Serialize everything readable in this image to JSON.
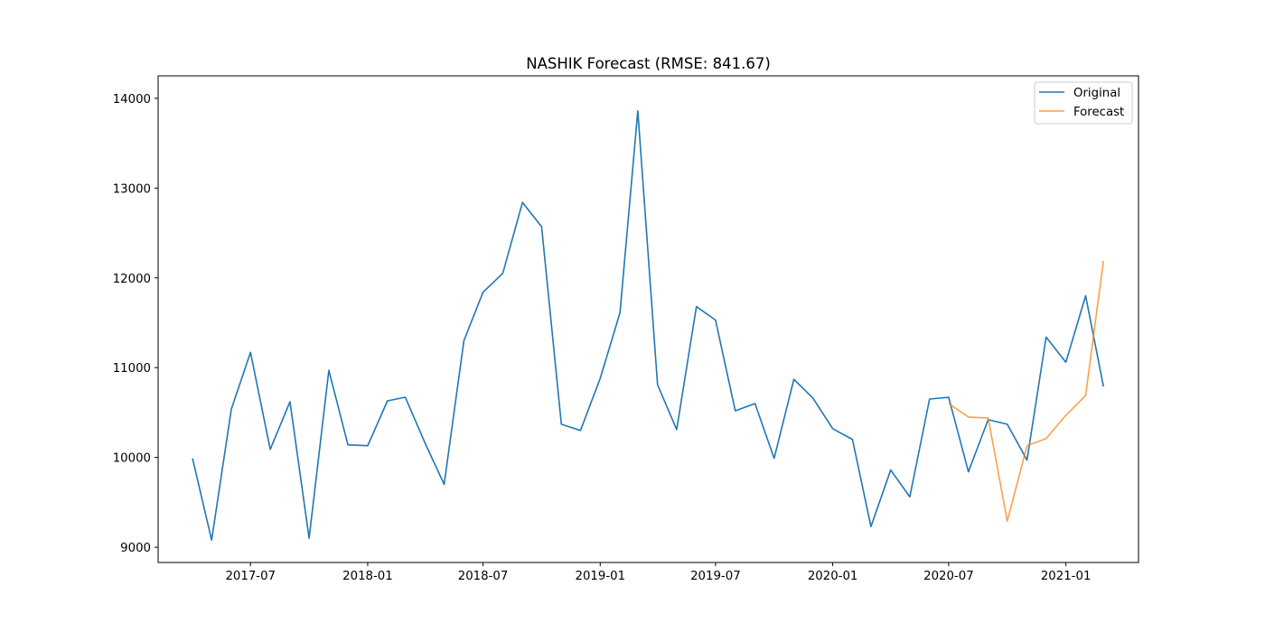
{
  "chart_data": {
    "type": "line",
    "title": "NASHIK Forecast (RMSE: 841.67)",
    "xlabel": "",
    "ylabel": "",
    "x_axis_type": "date",
    "xlim": [
      "2017-02-06",
      "2021-04-25"
    ],
    "ylim": [
      8830,
      14250
    ],
    "x_ticks": [
      {
        "date": "2017-07-01",
        "label": "2017-07"
      },
      {
        "date": "2018-01-01",
        "label": "2018-01"
      },
      {
        "date": "2018-07-01",
        "label": "2018-07"
      },
      {
        "date": "2019-01-01",
        "label": "2019-01"
      },
      {
        "date": "2019-07-01",
        "label": "2019-07"
      },
      {
        "date": "2020-01-01",
        "label": "2020-01"
      },
      {
        "date": "2020-07-01",
        "label": "2020-07"
      },
      {
        "date": "2021-01-01",
        "label": "2021-01"
      }
    ],
    "y_ticks": [
      9000,
      10000,
      11000,
      12000,
      13000,
      14000
    ],
    "grid": false,
    "legend": {
      "position": "upper right",
      "entries": [
        "Original",
        "Forecast"
      ]
    },
    "series": [
      {
        "name": "Original",
        "color": "#1f77b4",
        "x": [
          "2017-04-01",
          "2017-05-01",
          "2017-06-01",
          "2017-07-01",
          "2017-08-01",
          "2017-09-01",
          "2017-10-01",
          "2017-11-01",
          "2017-12-01",
          "2018-01-01",
          "2018-02-01",
          "2018-03-01",
          "2018-04-01",
          "2018-05-01",
          "2018-06-01",
          "2018-07-01",
          "2018-08-01",
          "2018-09-01",
          "2018-10-01",
          "2018-11-01",
          "2018-12-01",
          "2019-01-01",
          "2019-02-01",
          "2019-03-01",
          "2019-04-01",
          "2019-05-01",
          "2019-06-01",
          "2019-07-01",
          "2019-08-01",
          "2019-09-01",
          "2019-10-01",
          "2019-11-01",
          "2019-12-01",
          "2020-01-01",
          "2020-02-01",
          "2020-03-01",
          "2020-04-01",
          "2020-05-01",
          "2020-06-01",
          "2020-07-01",
          "2020-08-01",
          "2020-09-01",
          "2020-10-01",
          "2020-11-01",
          "2020-12-01",
          "2021-01-01",
          "2021-02-01",
          "2021-03-01"
        ],
        "values": [
          9990,
          9080,
          10540,
          11170,
          10090,
          10620,
          9100,
          10970,
          10140,
          10130,
          10630,
          10670,
          10160,
          9700,
          11300,
          11840,
          12050,
          12840,
          12570,
          10370,
          10300,
          10880,
          11610,
          13860,
          10810,
          10310,
          11680,
          11530,
          10520,
          10600,
          9990,
          10870,
          10660,
          10320,
          10200,
          9230,
          9860,
          9560,
          10650,
          10670,
          9840,
          10420,
          10370,
          9970,
          11340,
          11060,
          11800,
          10790
        ]
      },
      {
        "name": "Forecast",
        "color": "#ff7f0e",
        "x": [
          "2020-07-01",
          "2020-08-01",
          "2020-09-01",
          "2020-10-01",
          "2020-11-01",
          "2020-12-01",
          "2021-01-01",
          "2021-02-01",
          "2021-03-01"
        ],
        "values": [
          10600,
          10450,
          10440,
          9290,
          10130,
          10210,
          10470,
          10690,
          12190
        ]
      }
    ]
  }
}
